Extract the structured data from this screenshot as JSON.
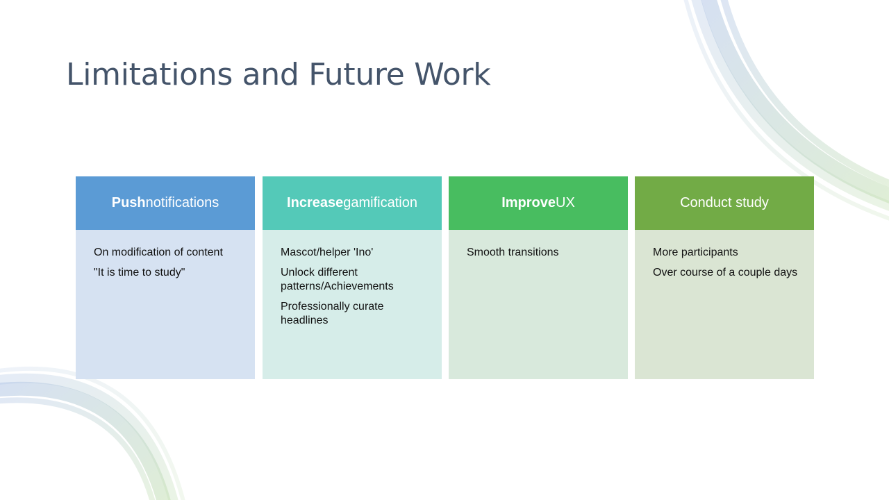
{
  "slide": {
    "title": "Limitations and Future Work"
  },
  "colors": {
    "title": "#44546a",
    "arc_blue": "#b4c7e7",
    "arc_green": "#c5e0b4"
  },
  "columns": [
    {
      "head_bold": "Push",
      "head_rest": " notifications",
      "head_color": "#5b9bd5",
      "body_color": "#d6e2f2",
      "items": [
        "On modification of content",
        "\"It is time to study\""
      ]
    },
    {
      "head_bold": "Increase",
      "head_rest": " gamification",
      "head_color": "#54c9b8",
      "body_color": "#d6ede9",
      "items": [
        "Mascot/helper 'Ino'",
        "Unlock different patterns/Achievements",
        "Professionally curate headlines"
      ]
    },
    {
      "head_bold": "Improve",
      "head_rest": " UX",
      "head_color": "#48bd60",
      "body_color": "#d8e9dc",
      "items": [
        "Smooth transitions"
      ]
    },
    {
      "head_bold": "",
      "head_rest": "Conduct study",
      "head_color": "#72ab46",
      "body_color": "#dae5d3",
      "items": [
        "More participants",
        "Over course of a couple days"
      ]
    }
  ]
}
